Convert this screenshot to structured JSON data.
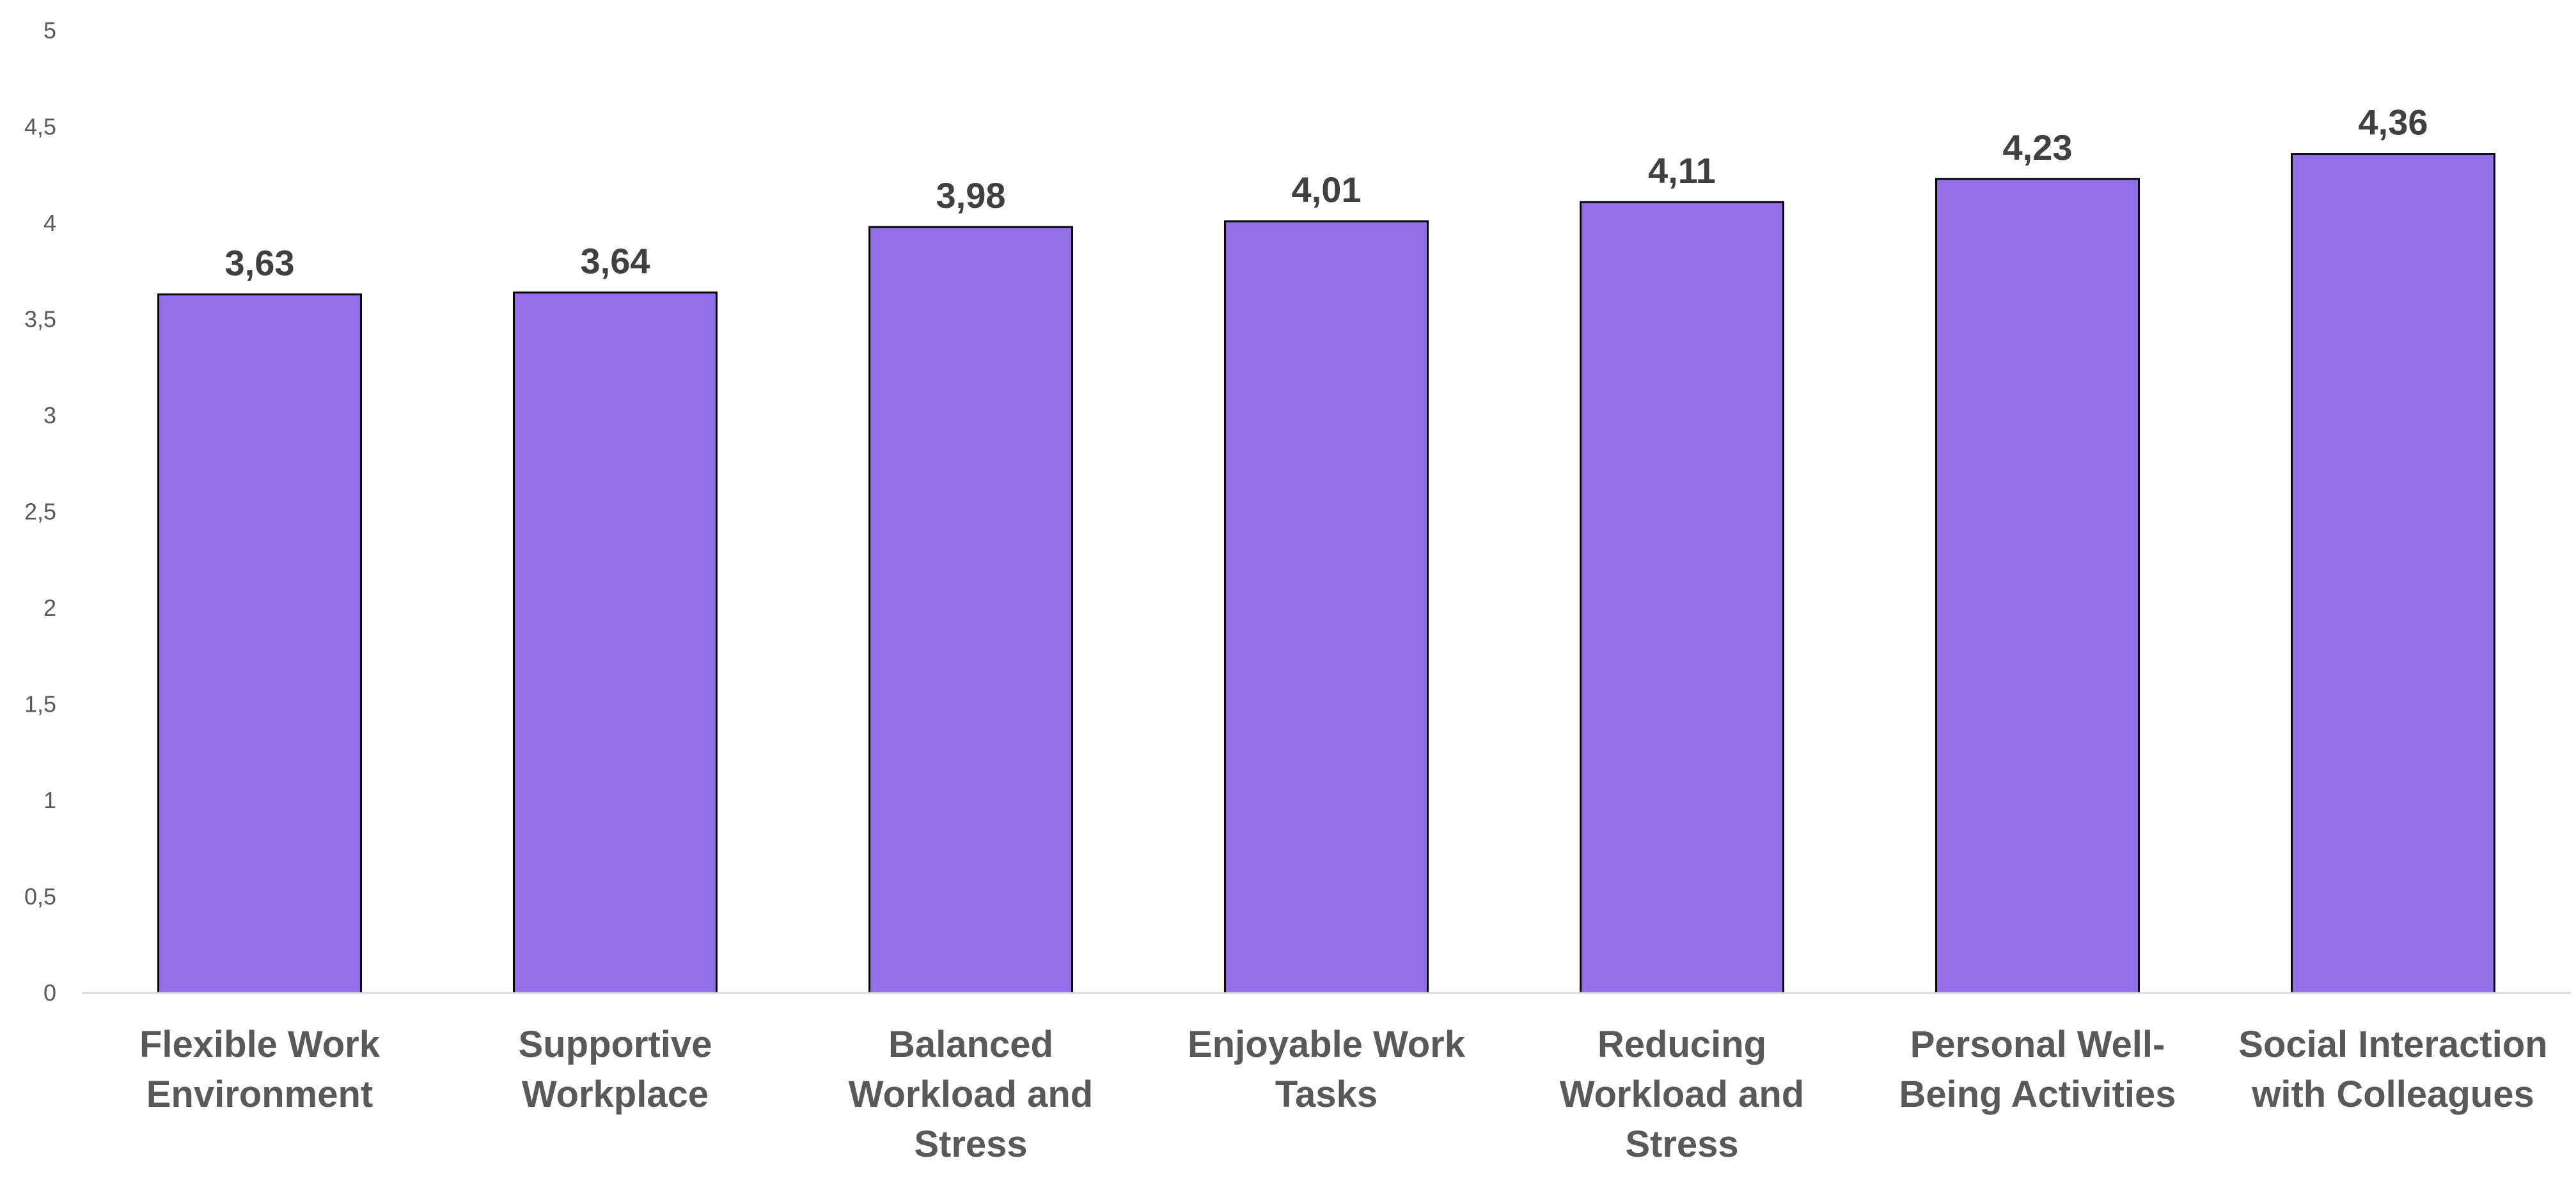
{
  "chart_data": {
    "type": "bar",
    "categories": [
      [
        "Flexible Work",
        "Environment"
      ],
      [
        "Supportive",
        "Workplace"
      ],
      [
        "Balanced",
        "Workload and",
        "Stress"
      ],
      [
        "Enjoyable Work",
        "Tasks"
      ],
      [
        "Reducing",
        "Workload and",
        "Stress"
      ],
      [
        "Personal Well-",
        "Being Activities"
      ],
      [
        "Social Interaction",
        "with Colleagues"
      ]
    ],
    "values": [
      3.63,
      3.64,
      3.98,
      4.01,
      4.11,
      4.23,
      4.36
    ],
    "data_labels": [
      "3,63",
      "3,64",
      "3,98",
      "4,01",
      "4,11",
      "4,23",
      "4,36"
    ],
    "y_ticks": [
      "0",
      "0,5",
      "1",
      "1,5",
      "2",
      "2,5",
      "3",
      "3,5",
      "4",
      "4,5",
      "5"
    ],
    "ylim": [
      0,
      5
    ],
    "title": "",
    "xlabel": "",
    "ylabel": "",
    "grid": false,
    "legend": "none",
    "colors": {
      "bar_fill": "#9370E8",
      "bar_stroke": "#000000",
      "axis": "#d9d9d9"
    }
  }
}
